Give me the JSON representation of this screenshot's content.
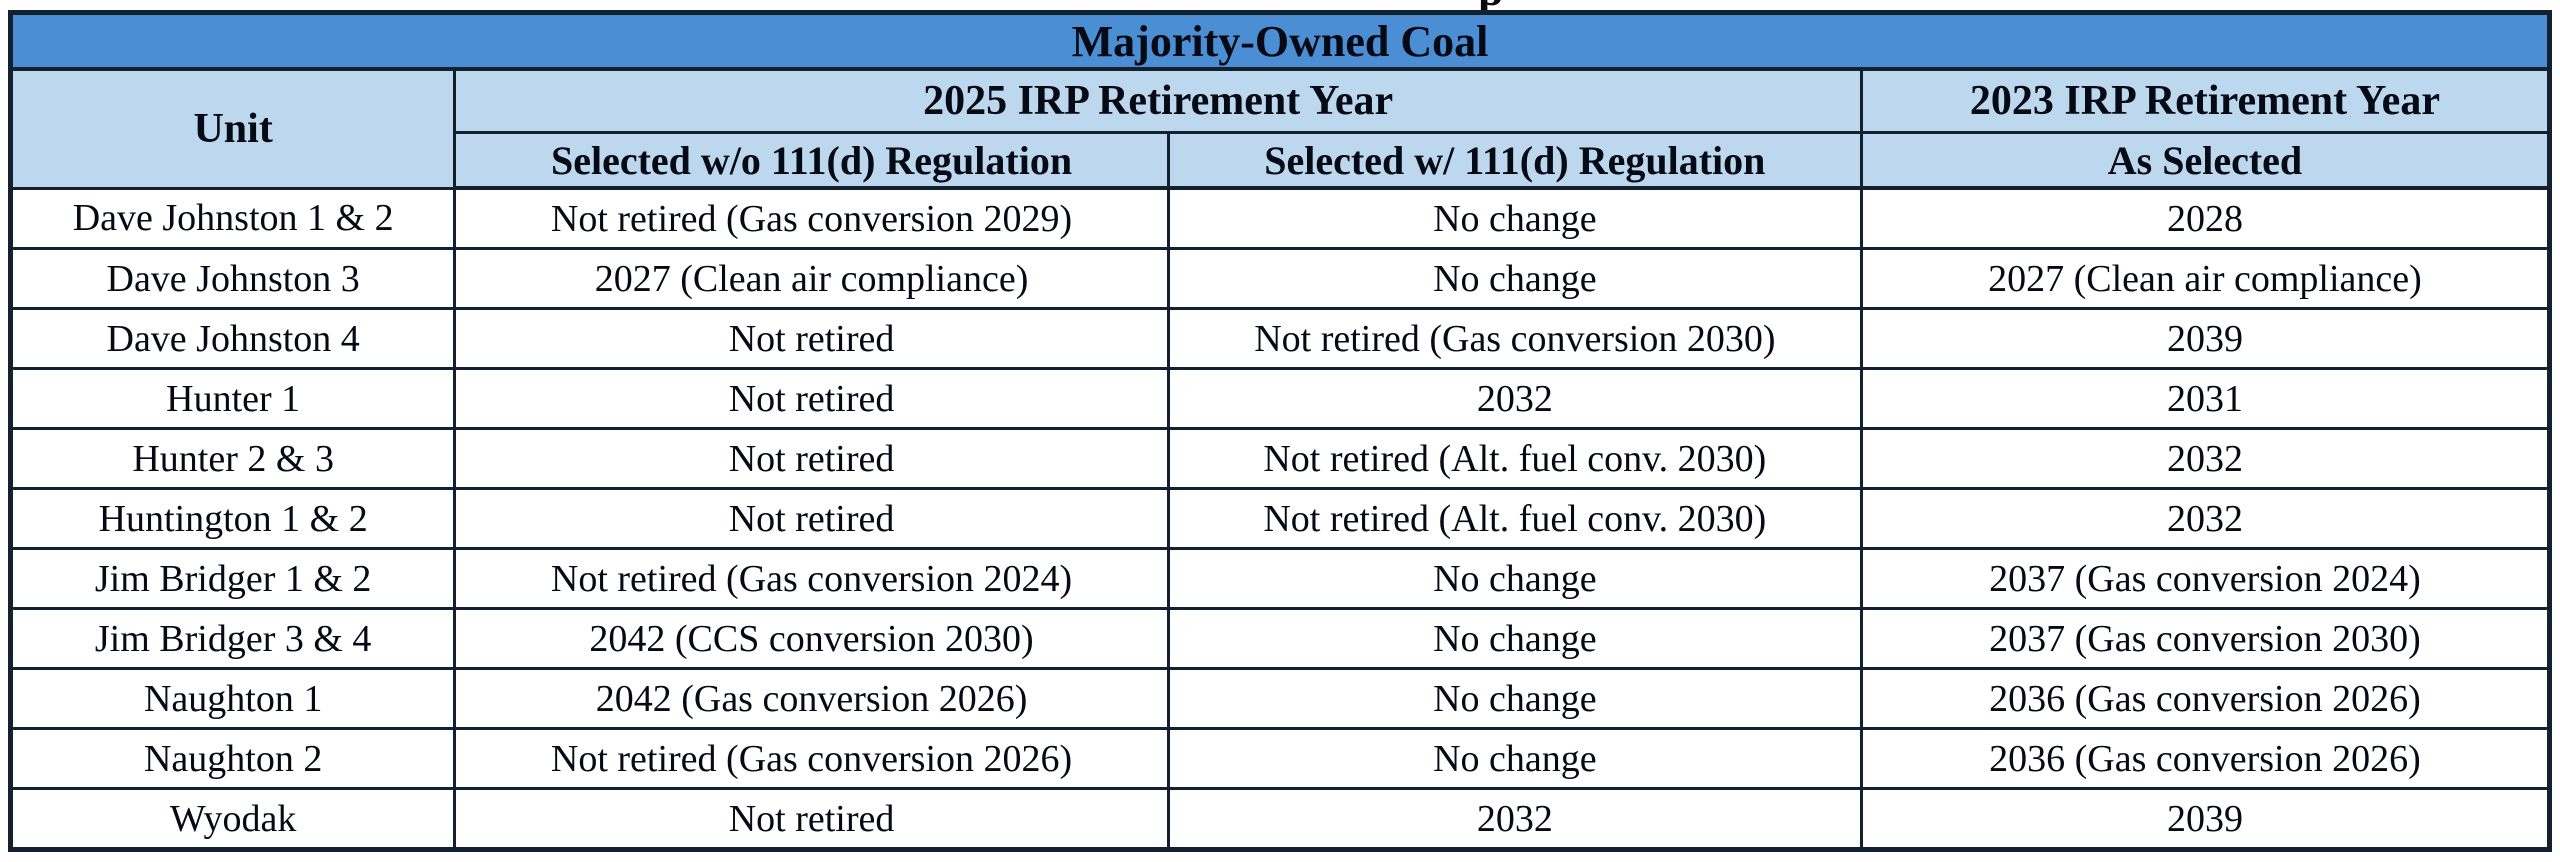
{
  "meta": {
    "cropped_text_fragment": "p"
  },
  "colors": {
    "title_bg": "#4c8ed3",
    "header_bg": "#bdd7ee",
    "border": "#12202f",
    "text": "#050a14"
  },
  "table": {
    "title": "Majority-Owned Coal",
    "columns": {
      "unit": "Unit",
      "irp2025_group": "2025 IRP Retirement Year",
      "irp2023_group": "2023 IRP Retirement Year",
      "sub_without_111d": "Selected w/o 111(d) Regulation",
      "sub_with_111d": "Selected w/ 111(d) Regulation",
      "sub_2023_as_selected": "As Selected"
    },
    "rows": [
      {
        "unit": "Dave Johnston 1 & 2",
        "selected_wo_111d": "Not retired (Gas conversion 2029)",
        "selected_w_111d": "No change",
        "irp2023_as_selected": "2028"
      },
      {
        "unit": "Dave Johnston 3",
        "selected_wo_111d": "2027 (Clean air compliance)",
        "selected_w_111d": "No change",
        "irp2023_as_selected": "2027 (Clean air compliance)"
      },
      {
        "unit": "Dave Johnston 4",
        "selected_wo_111d": "Not retired",
        "selected_w_111d": "Not retired (Gas conversion 2030)",
        "irp2023_as_selected": "2039"
      },
      {
        "unit": "Hunter 1",
        "selected_wo_111d": "Not retired",
        "selected_w_111d": "2032",
        "irp2023_as_selected": "2031"
      },
      {
        "unit": "Hunter 2 & 3",
        "selected_wo_111d": "Not retired",
        "selected_w_111d": "Not retired (Alt. fuel conv. 2030)",
        "irp2023_as_selected": "2032"
      },
      {
        "unit": "Huntington 1 & 2",
        "selected_wo_111d": "Not retired",
        "selected_w_111d": "Not retired (Alt. fuel conv. 2030)",
        "irp2023_as_selected": "2032"
      },
      {
        "unit": "Jim Bridger 1 & 2",
        "selected_wo_111d": "Not retired (Gas conversion 2024)",
        "selected_w_111d": "No change",
        "irp2023_as_selected": "2037 (Gas conversion 2024)"
      },
      {
        "unit": "Jim Bridger 3 & 4",
        "selected_wo_111d": "2042 (CCS conversion 2030)",
        "selected_w_111d": "No change",
        "irp2023_as_selected": "2037 (Gas conversion 2030)"
      },
      {
        "unit": "Naughton 1",
        "selected_wo_111d": "2042 (Gas conversion 2026)",
        "selected_w_111d": "No change",
        "irp2023_as_selected": "2036 (Gas conversion 2026)"
      },
      {
        "unit": "Naughton 2",
        "selected_wo_111d": "Not retired (Gas conversion 2026)",
        "selected_w_111d": "No change",
        "irp2023_as_selected": "2036 (Gas conversion 2026)"
      },
      {
        "unit": "Wyodak",
        "selected_wo_111d": "Not retired",
        "selected_w_111d": "2032",
        "irp2023_as_selected": "2039"
      }
    ]
  }
}
